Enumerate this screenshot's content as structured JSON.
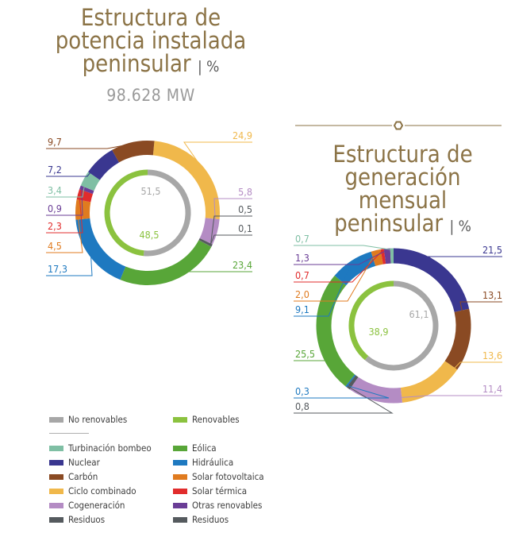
{
  "colors": {
    "no_renovables": "#a7a7a7",
    "renovables": "#8bc23f",
    "turbinacion": "#7fbfa4",
    "nuclear": "#3a3790",
    "carbon": "#8a4a23",
    "ciclo": "#f0b84b",
    "cogeneracion": "#b48cc4",
    "residuos": "#555a5e",
    "eolica": "#58a638",
    "hidraulica": "#1e79c0",
    "fotovoltaica": "#e07b1f",
    "termica": "#e12c2c",
    "otras": "#6a3d96",
    "title": "#8b7346"
  },
  "chart1": {
    "title_lines": [
      "Estructura de",
      "potencia instalada",
      "peninsular"
    ],
    "title_suffix": "| %",
    "total": "98.628 MW"
  },
  "chart2": {
    "title_lines": [
      "Estructura de",
      "generación mensual",
      "peninsular"
    ],
    "title_suffix": "| %"
  },
  "chart_data": [
    {
      "type": "pie",
      "title": "Estructura de potencia instalada peninsular | %",
      "subtitle": "98.628 MW",
      "inner": [
        {
          "name": "No renovables",
          "value": 51.5,
          "label": "51,5",
          "color_key": "no_renovables"
        },
        {
          "name": "Renovables",
          "value": 48.5,
          "label": "48,5",
          "color_key": "renovables"
        }
      ],
      "outer": [
        {
          "name": "Ciclo combinado",
          "value": 24.9,
          "label": "24,9",
          "color_key": "ciclo"
        },
        {
          "name": "Cogeneración",
          "value": 5.8,
          "label": "5,8",
          "color_key": "cogeneracion"
        },
        {
          "name": "Residuos",
          "value": 0.5,
          "label": "0,5",
          "color_key": "residuos"
        },
        {
          "name": "Residuos renovables",
          "value": 0.1,
          "label": "0,1",
          "color_key": "residuos"
        },
        {
          "name": "Eólica",
          "value": 23.4,
          "label": "23,4",
          "color_key": "eolica"
        },
        {
          "name": "Hidráulica",
          "value": 17.3,
          "label": "17,3",
          "color_key": "hidraulica"
        },
        {
          "name": "Solar fotovoltaica",
          "value": 4.5,
          "label": "4,5",
          "color_key": "fotovoltaica"
        },
        {
          "name": "Solar térmica",
          "value": 2.3,
          "label": "2,3",
          "color_key": "termica"
        },
        {
          "name": "Otras renovables",
          "value": 0.9,
          "label": "0,9",
          "color_key": "otras"
        },
        {
          "name": "Turbinación bombeo",
          "value": 3.4,
          "label": "3,4",
          "color_key": "turbinacion"
        },
        {
          "name": "Nuclear",
          "value": 7.2,
          "label": "7,2",
          "color_key": "nuclear"
        },
        {
          "name": "Carbón",
          "value": 9.7,
          "label": "9,7",
          "color_key": "carbon"
        }
      ]
    },
    {
      "type": "pie",
      "title": "Estructura de generación mensual peninsular | %",
      "inner": [
        {
          "name": "No renovables",
          "value": 61.1,
          "label": "61,1",
          "color_key": "no_renovables"
        },
        {
          "name": "Renovables",
          "value": 38.9,
          "label": "38,9",
          "color_key": "renovables"
        }
      ],
      "outer": [
        {
          "name": "Nuclear",
          "value": 21.5,
          "label": "21,5",
          "color_key": "nuclear"
        },
        {
          "name": "Carbón",
          "value": 13.1,
          "label": "13,1",
          "color_key": "carbon"
        },
        {
          "name": "Ciclo combinado",
          "value": 13.6,
          "label": "13,6",
          "color_key": "ciclo"
        },
        {
          "name": "Cogeneración",
          "value": 11.4,
          "label": "11,4",
          "color_key": "cogeneracion"
        },
        {
          "name": "Residuos",
          "value": 0.8,
          "label": "0,8",
          "color_key": "residuos"
        },
        {
          "name": "Residuos renovables",
          "value": 0.3,
          "label": "0,3",
          "color_key": "hidraulica"
        },
        {
          "name": "Eólica",
          "value": 25.5,
          "label": "25,5",
          "color_key": "eolica"
        },
        {
          "name": "Hidráulica",
          "value": 9.1,
          "label": "9,1",
          "color_key": "hidraulica"
        },
        {
          "name": "Solar fotovoltaica",
          "value": 2.0,
          "label": "2,0",
          "color_key": "fotovoltaica"
        },
        {
          "name": "Solar térmica",
          "value": 0.7,
          "label": "0,7",
          "color_key": "termica"
        },
        {
          "name": "Otras renovables",
          "value": 1.3,
          "label": "1,3",
          "color_key": "otras"
        },
        {
          "name": "Turbinación bombeo",
          "value": 0.7,
          "label": "0,7",
          "color_key": "turbinacion"
        }
      ]
    }
  ],
  "legend": {
    "left_top": {
      "label": "No renovables",
      "color_key": "no_renovables"
    },
    "right_top": {
      "label": "Renovables",
      "color_key": "renovables"
    },
    "left": [
      {
        "label": "Turbinación bombeo",
        "color_key": "turbinacion"
      },
      {
        "label": "Nuclear",
        "color_key": "nuclear"
      },
      {
        "label": "Carbón",
        "color_key": "carbon"
      },
      {
        "label": "Ciclo combinado",
        "color_key": "ciclo"
      },
      {
        "label": "Cogeneración",
        "color_key": "cogeneracion"
      },
      {
        "label": "Residuos",
        "color_key": "residuos"
      }
    ],
    "right": [
      {
        "label": "Eólica",
        "color_key": "eolica"
      },
      {
        "label": "Hidráulica",
        "color_key": "hidraulica"
      },
      {
        "label": "Solar fotovoltaica",
        "color_key": "fotovoltaica"
      },
      {
        "label": "Solar térmica",
        "color_key": "termica"
      },
      {
        "label": "Otras renovables",
        "color_key": "otras"
      },
      {
        "label": "Residuos",
        "color_key": "residuos"
      }
    ]
  }
}
